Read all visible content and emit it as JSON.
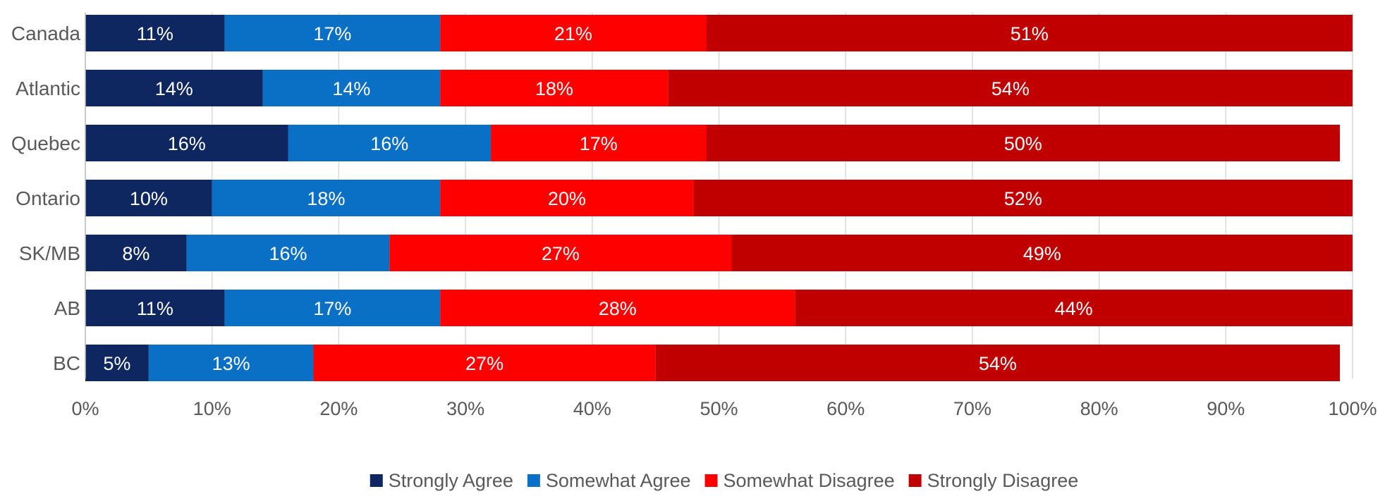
{
  "chart_data": {
    "type": "bar",
    "orientation": "horizontal",
    "stacked": true,
    "title": "",
    "xlabel": "",
    "ylabel": "",
    "xlim": [
      0,
      100
    ],
    "x_ticks": [
      "0%",
      "10%",
      "20%",
      "30%",
      "40%",
      "50%",
      "60%",
      "70%",
      "80%",
      "90%",
      "100%"
    ],
    "x_tick_values": [
      0,
      10,
      20,
      30,
      40,
      50,
      60,
      70,
      80,
      90,
      100
    ],
    "grid": true,
    "legend_position": "bottom",
    "categories": [
      "Canada",
      "Atlantic",
      "Quebec",
      "Ontario",
      "SK/MB",
      "AB",
      "BC"
    ],
    "series": [
      {
        "name": "Strongly Agree",
        "color": "#0e2761",
        "values": [
          11,
          14,
          16,
          10,
          8,
          11,
          5
        ],
        "labels": [
          "11%",
          "14%",
          "16%",
          "10%",
          "8%",
          "11%",
          "5%"
        ]
      },
      {
        "name": "Somewhat Agree",
        "color": "#0a70c6",
        "values": [
          17,
          14,
          16,
          18,
          16,
          17,
          13
        ],
        "labels": [
          "17%",
          "14%",
          "16%",
          "18%",
          "16%",
          "17%",
          "13%"
        ]
      },
      {
        "name": "Somewhat Disagree",
        "color": "#ff0000",
        "values": [
          21,
          18,
          17,
          20,
          27,
          28,
          27
        ],
        "labels": [
          "21%",
          "18%",
          "17%",
          "20%",
          "27%",
          "28%",
          "27%"
        ]
      },
      {
        "name": "Strongly Disagree",
        "color": "#c00000",
        "values": [
          51,
          54,
          50,
          52,
          49,
          44,
          54
        ],
        "labels": [
          "51%",
          "54%",
          "50%",
          "52%",
          "49%",
          "44%",
          "54%"
        ]
      }
    ]
  }
}
